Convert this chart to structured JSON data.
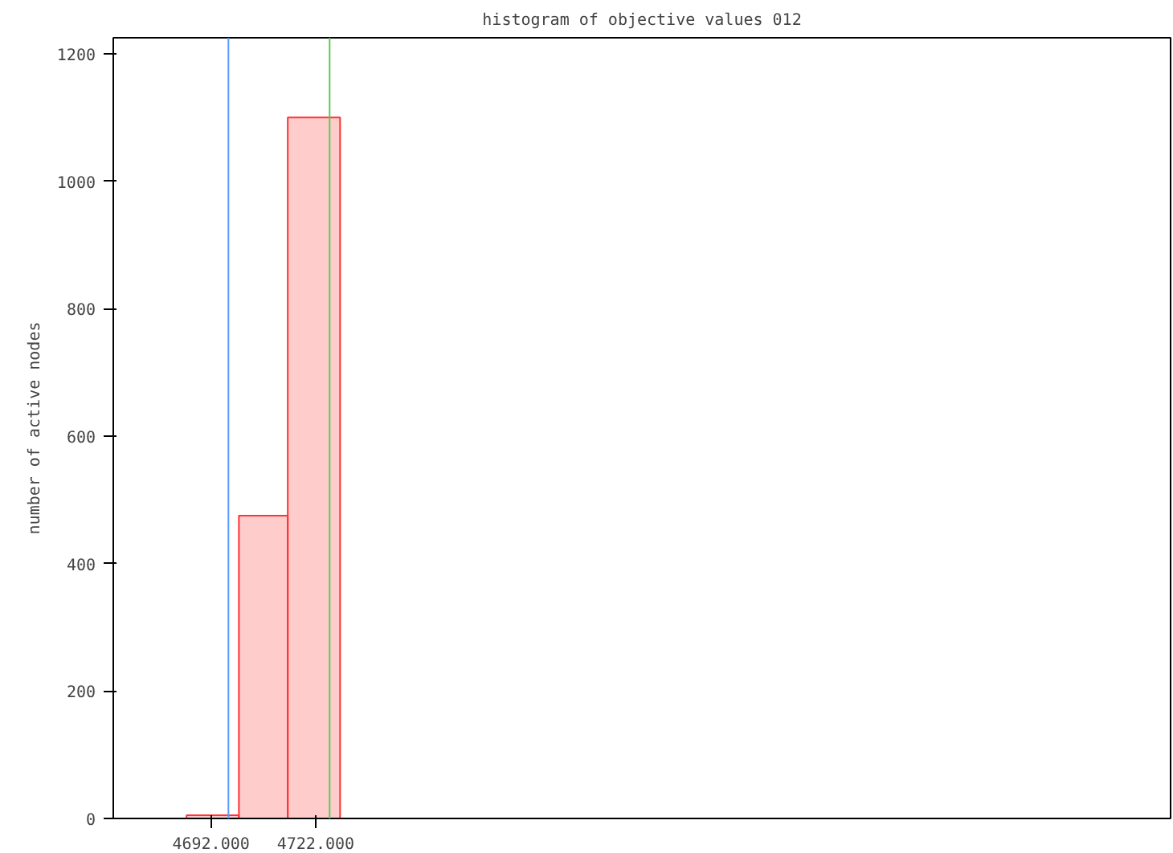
{
  "chart_data": {
    "type": "histogram",
    "title": "histogram of objective values 012",
    "ylabel": "number of active nodes",
    "bins": [
      4685,
      4700,
      4714,
      4729
    ],
    "values": [
      5,
      475,
      1100
    ],
    "color": "#ff3333",
    "xlim": [
      4664,
      4967
    ],
    "xticks": [
      {
        "value": 4692,
        "label": "4692.000"
      },
      {
        "value": 4722,
        "label": "4722.000"
      }
    ],
    "ylim": [
      0,
      1225
    ],
    "yticks": [
      0,
      200,
      400,
      600,
      800,
      1000,
      1200
    ],
    "grid": false,
    "ref_lines": [
      {
        "axis": "x",
        "value": 4697,
        "color": "#5599ff"
      },
      {
        "axis": "x",
        "value": 4726,
        "color": "#55cc55"
      }
    ]
  }
}
